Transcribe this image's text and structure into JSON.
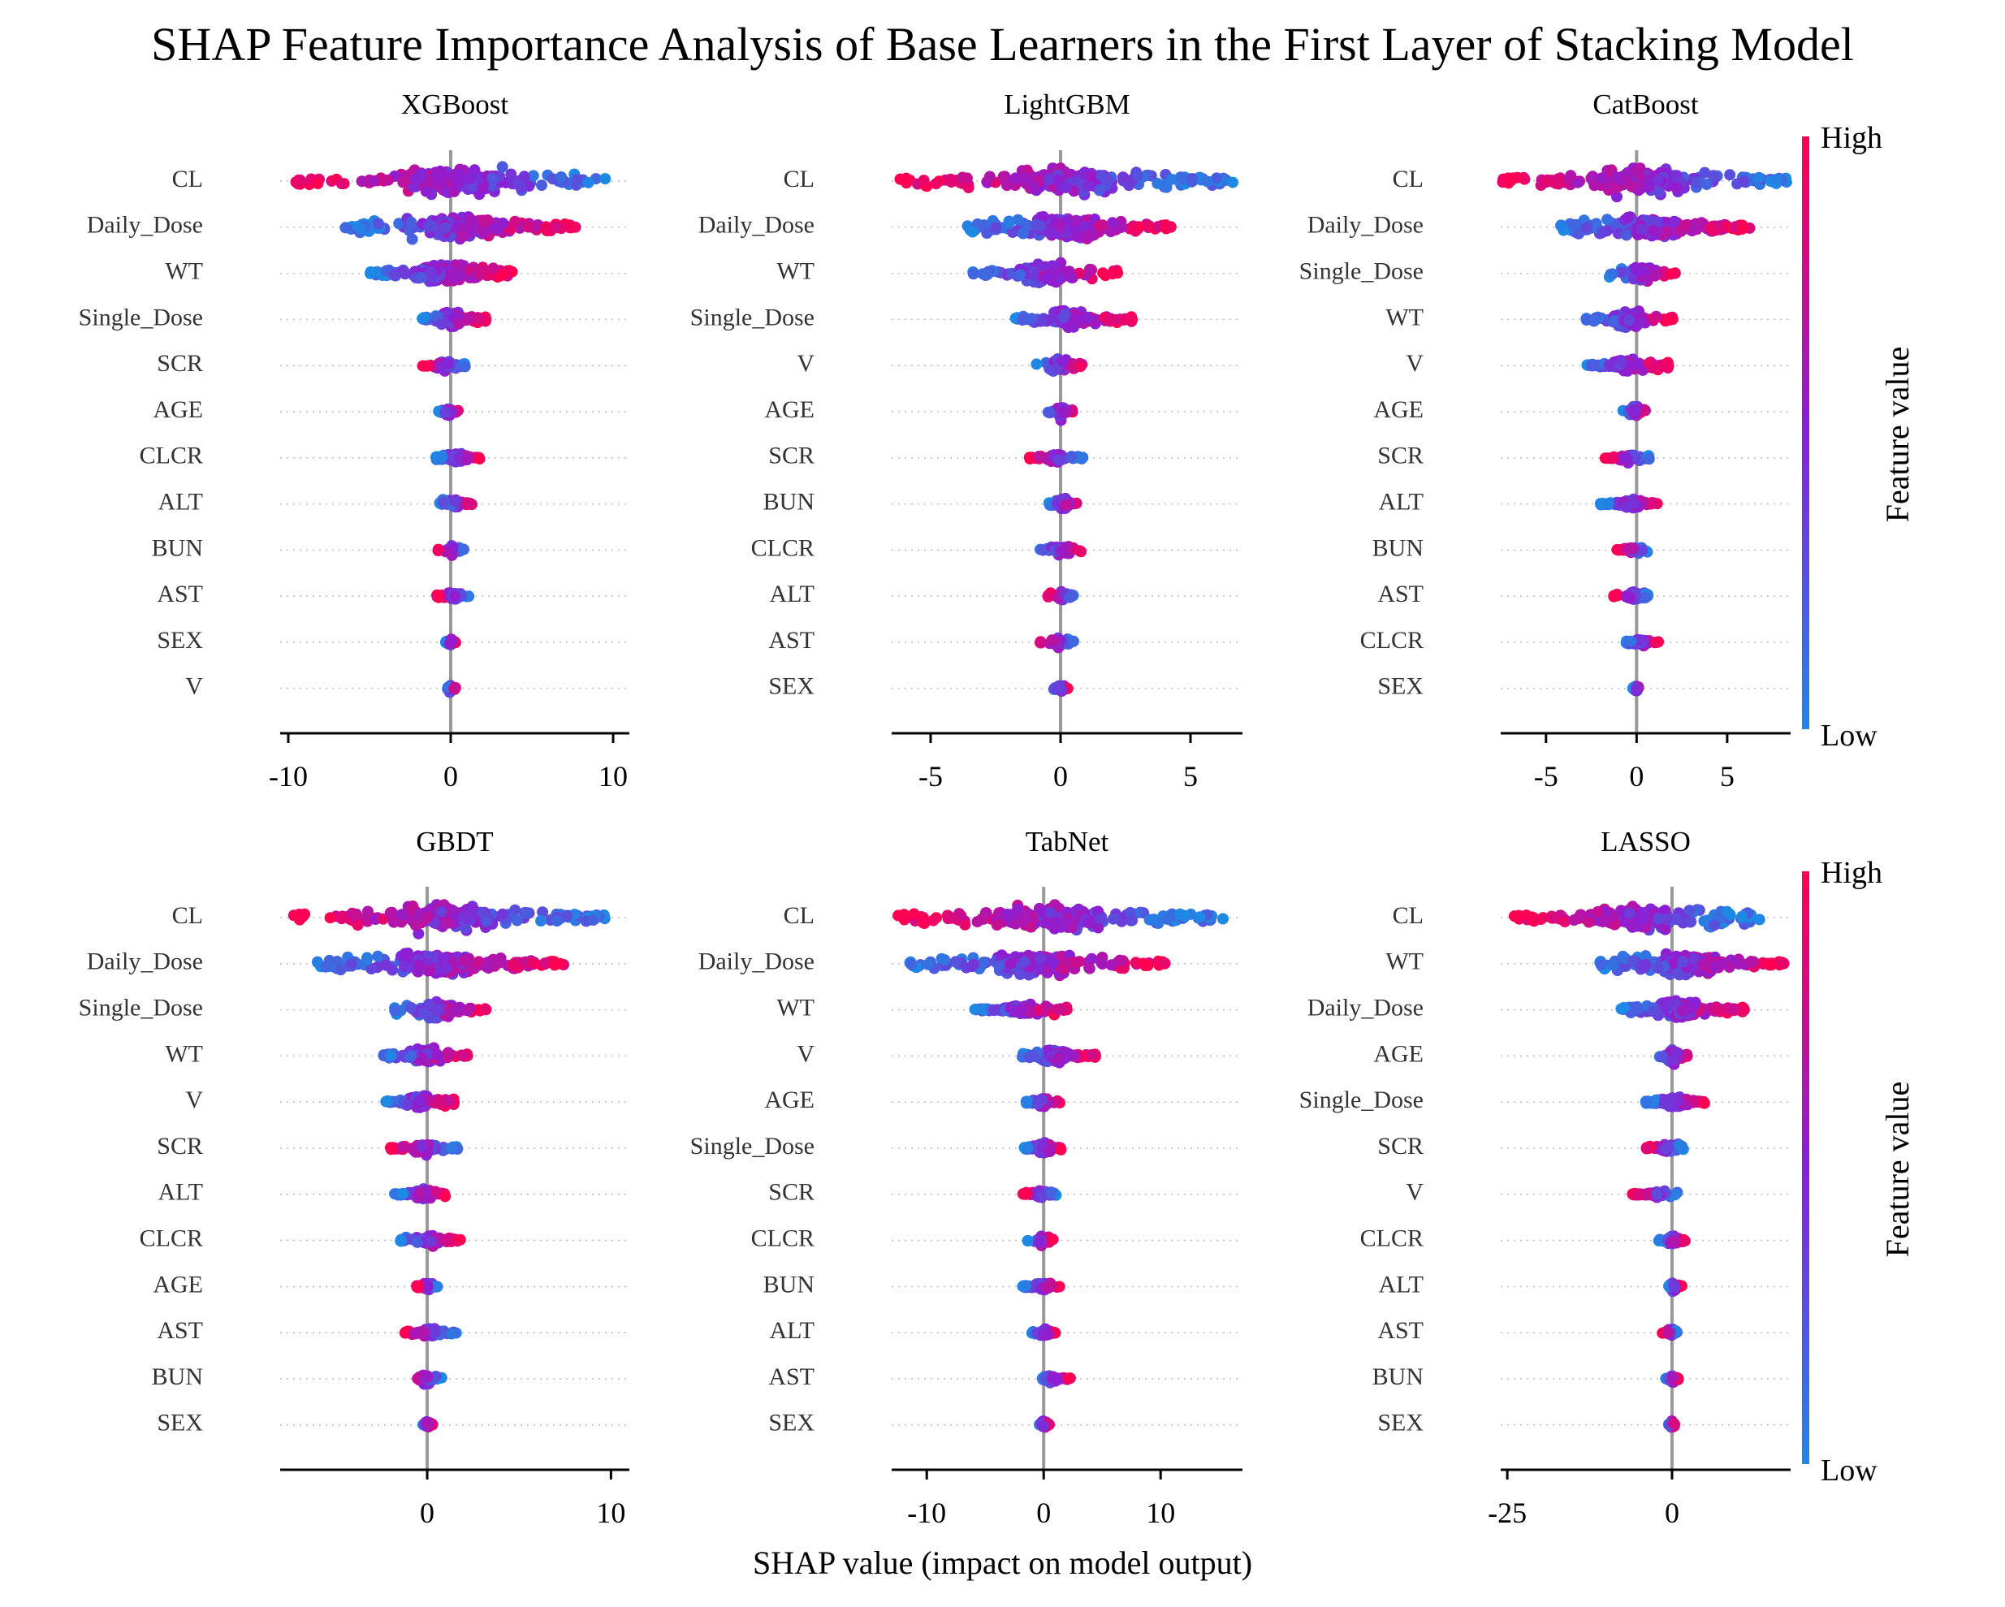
{
  "title": "SHAP Feature Importance Analysis of Base Learners in the First Layer of Stacking Model",
  "xlabel": "SHAP value (impact on model output)",
  "colorbar": {
    "high": "High",
    "low": "Low",
    "title": "Feature value",
    "colors": {
      "high": "#ff0052",
      "mid": "#8b1fd6",
      "low": "#1e88e5"
    }
  },
  "chart_data": [
    {
      "type": "scatter",
      "subtype": "shap-beeswarm",
      "title": "XGBoost",
      "xlim": [
        -10.5,
        11
      ],
      "xticks": [
        -10,
        0,
        10
      ],
      "xtick_labels": [
        "-10",
        "0",
        "10"
      ],
      "features": [
        {
          "name": "CL",
          "min": -9.8,
          "max": 10.2,
          "direction": -1,
          "width": 1.0
        },
        {
          "name": "Daily_Dose",
          "min": -6.6,
          "max": 7.8,
          "direction": 1,
          "width": 0.85
        },
        {
          "name": "WT",
          "min": -5.0,
          "max": 3.8,
          "direction": 1,
          "width": 0.75
        },
        {
          "name": "Single_Dose",
          "min": -1.8,
          "max": 2.2,
          "direction": 1,
          "width": 0.6
        },
        {
          "name": "SCR",
          "min": -1.8,
          "max": 1.0,
          "direction": -1,
          "width": 0.35
        },
        {
          "name": "AGE",
          "min": -0.8,
          "max": 0.6,
          "direction": 1,
          "width": 0.35
        },
        {
          "name": "CLCR",
          "min": -0.9,
          "max": 1.8,
          "direction": 1,
          "width": 0.4
        },
        {
          "name": "ALT",
          "min": -0.7,
          "max": 1.4,
          "direction": 1,
          "width": 0.4
        },
        {
          "name": "BUN",
          "min": -0.8,
          "max": 0.8,
          "direction": -1,
          "width": 0.35
        },
        {
          "name": "AST",
          "min": -0.9,
          "max": 1.2,
          "direction": -1,
          "width": 0.35
        },
        {
          "name": "SEX",
          "min": -0.3,
          "max": 0.3,
          "direction": 1,
          "width": 0.25
        },
        {
          "name": "V",
          "min": -0.3,
          "max": 0.3,
          "direction": 1,
          "width": 0.25
        }
      ]
    },
    {
      "type": "scatter",
      "subtype": "shap-beeswarm",
      "title": "LightGBM",
      "xlim": [
        -6.5,
        7
      ],
      "xticks": [
        -5,
        0,
        5
      ],
      "xtick_labels": [
        "-5",
        "0",
        "5"
      ],
      "features": [
        {
          "name": "CL",
          "min": -6.2,
          "max": 6.7,
          "direction": -1,
          "width": 1.0
        },
        {
          "name": "Daily_Dose",
          "min": -3.6,
          "max": 4.4,
          "direction": 1,
          "width": 0.85
        },
        {
          "name": "WT",
          "min": -3.4,
          "max": 2.2,
          "direction": 1,
          "width": 0.75
        },
        {
          "name": "Single_Dose",
          "min": -1.8,
          "max": 2.8,
          "direction": 1,
          "width": 0.7
        },
        {
          "name": "V",
          "min": -1.0,
          "max": 1.0,
          "direction": 1,
          "width": 0.55
        },
        {
          "name": "AGE",
          "min": -0.5,
          "max": 0.5,
          "direction": 1,
          "width": 0.5
        },
        {
          "name": "SCR",
          "min": -1.2,
          "max": 0.9,
          "direction": -1,
          "width": 0.4
        },
        {
          "name": "BUN",
          "min": -0.5,
          "max": 0.7,
          "direction": 1,
          "width": 0.45
        },
        {
          "name": "CLCR",
          "min": -0.8,
          "max": 0.8,
          "direction": 1,
          "width": 0.45
        },
        {
          "name": "ALT",
          "min": -0.5,
          "max": 0.6,
          "direction": -1,
          "width": 0.4
        },
        {
          "name": "AST",
          "min": -0.8,
          "max": 0.5,
          "direction": -1,
          "width": 0.35
        },
        {
          "name": "SEX",
          "min": -0.3,
          "max": 0.3,
          "direction": 1,
          "width": 0.3
        }
      ]
    },
    {
      "type": "scatter",
      "subtype": "shap-beeswarm",
      "title": "CatBoost",
      "xlim": [
        -7.5,
        8.5
      ],
      "xticks": [
        -5,
        0,
        5
      ],
      "xtick_labels": [
        "-5",
        "0",
        "5"
      ],
      "features": [
        {
          "name": "CL",
          "min": -7.4,
          "max": 8.4,
          "direction": -1,
          "width": 1.0
        },
        {
          "name": "Daily_Dose",
          "min": -4.2,
          "max": 6.3,
          "direction": 1,
          "width": 0.8
        },
        {
          "name": "Single_Dose",
          "min": -1.6,
          "max": 2.2,
          "direction": 1,
          "width": 0.6
        },
        {
          "name": "WT",
          "min": -2.8,
          "max": 2.0,
          "direction": 1,
          "width": 0.6
        },
        {
          "name": "V",
          "min": -2.8,
          "max": 1.8,
          "direction": 1,
          "width": 0.5
        },
        {
          "name": "AGE",
          "min": -0.8,
          "max": 0.6,
          "direction": 1,
          "width": 0.45
        },
        {
          "name": "SCR",
          "min": -1.8,
          "max": 0.8,
          "direction": -1,
          "width": 0.35
        },
        {
          "name": "ALT",
          "min": -2.0,
          "max": 1.2,
          "direction": 1,
          "width": 0.35
        },
        {
          "name": "BUN",
          "min": -1.1,
          "max": 0.6,
          "direction": -1,
          "width": 0.35
        },
        {
          "name": "AST",
          "min": -1.3,
          "max": 0.8,
          "direction": -1,
          "width": 0.35
        },
        {
          "name": "CLCR",
          "min": -0.6,
          "max": 1.2,
          "direction": 1,
          "width": 0.3
        },
        {
          "name": "SEX",
          "min": -0.2,
          "max": 0.2,
          "direction": 1,
          "width": 0.25
        }
      ]
    },
    {
      "type": "scatter",
      "subtype": "shap-beeswarm",
      "title": "GBDT",
      "xlim": [
        -8,
        11
      ],
      "xticks": [
        0,
        10
      ],
      "xtick_labels": [
        "0",
        "10"
      ],
      "features": [
        {
          "name": "CL",
          "min": -7.3,
          "max": 9.8,
          "direction": -1,
          "width": 1.0
        },
        {
          "name": "Daily_Dose",
          "min": -6.0,
          "max": 7.5,
          "direction": 1,
          "width": 0.85
        },
        {
          "name": "Single_Dose",
          "min": -1.8,
          "max": 3.3,
          "direction": 1,
          "width": 0.6
        },
        {
          "name": "WT",
          "min": -2.5,
          "max": 2.2,
          "direction": 1,
          "width": 0.6
        },
        {
          "name": "V",
          "min": -2.3,
          "max": 1.5,
          "direction": 1,
          "width": 0.5
        },
        {
          "name": "SCR",
          "min": -2.0,
          "max": 1.8,
          "direction": -1,
          "width": 0.4
        },
        {
          "name": "ALT",
          "min": -1.8,
          "max": 1.0,
          "direction": 1,
          "width": 0.4
        },
        {
          "name": "CLCR",
          "min": -1.5,
          "max": 1.8,
          "direction": 1,
          "width": 0.4
        },
        {
          "name": "AGE",
          "min": -0.6,
          "max": 0.6,
          "direction": -1,
          "width": 0.35
        },
        {
          "name": "AST",
          "min": -1.2,
          "max": 1.6,
          "direction": -1,
          "width": 0.35
        },
        {
          "name": "BUN",
          "min": -0.8,
          "max": 0.8,
          "direction": -1,
          "width": 0.35
        },
        {
          "name": "SEX",
          "min": -0.3,
          "max": 0.3,
          "direction": 1,
          "width": 0.25
        }
      ]
    },
    {
      "type": "scatter",
      "subtype": "shap-beeswarm",
      "title": "TabNet",
      "xlim": [
        -13,
        17
      ],
      "xticks": [
        -10,
        0,
        10
      ],
      "xtick_labels": [
        "-10",
        "0",
        "10"
      ],
      "features": [
        {
          "name": "CL",
          "min": -12.5,
          "max": 15.5,
          "direction": -1,
          "width": 1.0
        },
        {
          "name": "Daily_Dose",
          "min": -11.5,
          "max": 10.8,
          "direction": 1,
          "width": 0.8
        },
        {
          "name": "WT",
          "min": -6.0,
          "max": 2.0,
          "direction": 1,
          "width": 0.45
        },
        {
          "name": "V",
          "min": -2.0,
          "max": 4.5,
          "direction": 1,
          "width": 0.5
        },
        {
          "name": "AGE",
          "min": -1.5,
          "max": 1.5,
          "direction": 1,
          "width": 0.4
        },
        {
          "name": "Single_Dose",
          "min": -1.8,
          "max": 1.5,
          "direction": 1,
          "width": 0.4
        },
        {
          "name": "SCR",
          "min": -1.8,
          "max": 1.2,
          "direction": -1,
          "width": 0.35
        },
        {
          "name": "CLCR",
          "min": -1.4,
          "max": 0.8,
          "direction": 1,
          "width": 0.35
        },
        {
          "name": "BUN",
          "min": -1.8,
          "max": 1.5,
          "direction": 1,
          "width": 0.35
        },
        {
          "name": "ALT",
          "min": -1.0,
          "max": 1.0,
          "direction": 1,
          "width": 0.3
        },
        {
          "name": "AST",
          "min": -0.6,
          "max": 2.3,
          "direction": 1,
          "width": 0.3
        },
        {
          "name": "SEX",
          "min": -0.5,
          "max": 0.5,
          "direction": 1,
          "width": 0.3
        }
      ]
    },
    {
      "type": "scatter",
      "subtype": "shap-beeswarm",
      "title": "LASSO",
      "xlim": [
        -26,
        18
      ],
      "xticks": [
        -25,
        0
      ],
      "xtick_labels": [
        "-25",
        "0"
      ],
      "features": [
        {
          "name": "CL",
          "min": -24.0,
          "max": 13.5,
          "direction": -1,
          "width": 1.0
        },
        {
          "name": "WT",
          "min": -11.0,
          "max": 17.5,
          "direction": 1,
          "width": 0.8
        },
        {
          "name": "Daily_Dose",
          "min": -8.0,
          "max": 11.0,
          "direction": 1,
          "width": 0.65
        },
        {
          "name": "AGE",
          "min": -2.0,
          "max": 2.5,
          "direction": 1,
          "width": 0.5
        },
        {
          "name": "Single_Dose",
          "min": -4.0,
          "max": 5.0,
          "direction": 1,
          "width": 0.4
        },
        {
          "name": "SCR",
          "min": -4.0,
          "max": 2.0,
          "direction": -1,
          "width": 0.4
        },
        {
          "name": "V",
          "min": -6.0,
          "max": 0.8,
          "direction": -1,
          "width": 0.35
        },
        {
          "name": "CLCR",
          "min": -2.0,
          "max": 2.0,
          "direction": 1,
          "width": 0.35
        },
        {
          "name": "ALT",
          "min": -0.8,
          "max": 1.5,
          "direction": 1,
          "width": 0.3
        },
        {
          "name": "AST",
          "min": -1.5,
          "max": 0.8,
          "direction": -1,
          "width": 0.3
        },
        {
          "name": "BUN",
          "min": -1.0,
          "max": 1.0,
          "direction": 1,
          "width": 0.3
        },
        {
          "name": "SEX",
          "min": -0.5,
          "max": 0.5,
          "direction": 1,
          "width": 0.3
        }
      ]
    }
  ]
}
